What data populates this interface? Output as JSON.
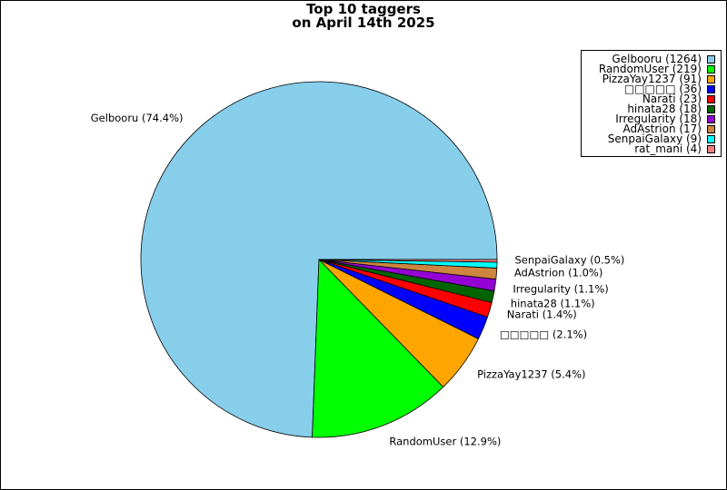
{
  "chart_data": {
    "type": "pie",
    "title_lines": [
      "Top 10 taggers",
      "on April 14th 2025"
    ],
    "slices": [
      {
        "name": "Gelbooru",
        "value": 1264,
        "pct_label": "Gelbooru (74.4%)",
        "color": "#87ceeb"
      },
      {
        "name": "RandomUser",
        "value": 219,
        "pct_label": "RandomUser (12.9%)",
        "color": "#00ff00"
      },
      {
        "name": "PizzaYay1237",
        "value": 91,
        "pct_label": "PizzaYay1237 (5.4%)",
        "color": "#ffa500"
      },
      {
        "name": "□□□□□",
        "value": 36,
        "pct_label": "□□□□□ (2.1%)",
        "color": "#0000ff"
      },
      {
        "name": "Narati",
        "value": 23,
        "pct_label": "Narati (1.4%)",
        "color": "#ff0000"
      },
      {
        "name": "hinata28",
        "value": 18,
        "pct_label": "hinata28 (1.1%)",
        "color": "#006400"
      },
      {
        "name": "Irregularity",
        "value": 18,
        "pct_label": "Irregularity (1.1%)",
        "color": "#9400d3"
      },
      {
        "name": "AdAstrion",
        "value": 17,
        "pct_label": "AdAstrion (1.0%)",
        "color": "#cd853f"
      },
      {
        "name": "SenpaiGalaxy",
        "value": 9,
        "pct_label": "SenpaiGalaxy (0.5%)",
        "color": "#00ffff"
      },
      {
        "name": "rat_mani",
        "value": 4,
        "pct_label": "",
        "color": "#f08080"
      }
    ],
    "legend": {
      "placement": "top-right",
      "entries": [
        "Gelbooru (1264)",
        "RandomUser (219)",
        "PizzaYay1237 (91)",
        "□□□□□ (36)",
        "Narati (23)",
        "hinata28 (18)",
        "Irregularity (18)",
        "AdAstrion (17)",
        "SenpaiGalaxy (9)",
        "rat_mani (4)"
      ]
    }
  }
}
